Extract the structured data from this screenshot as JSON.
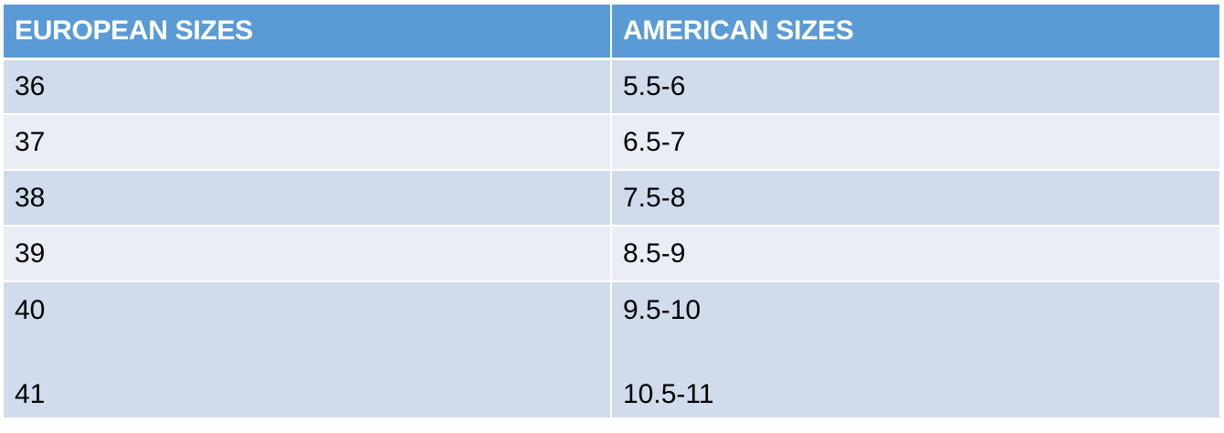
{
  "table": {
    "headers": [
      "EUROPEAN SIZES",
      "AMERICAN SIZES"
    ],
    "rows": [
      [
        "36",
        "5.5-6"
      ],
      [
        "37",
        "6.5-7"
      ],
      [
        "38",
        "7.5-8"
      ],
      [
        "39",
        "8.5-9"
      ]
    ],
    "last_row": {
      "european": [
        "40",
        "41"
      ],
      "american": [
        "9.5-10",
        "10.5-11"
      ]
    }
  },
  "colors": {
    "header_bg": "#5b9bd5",
    "row_dark": "#d0dbeb",
    "row_light": "#e9edf6",
    "header_text": "#ffffff"
  }
}
